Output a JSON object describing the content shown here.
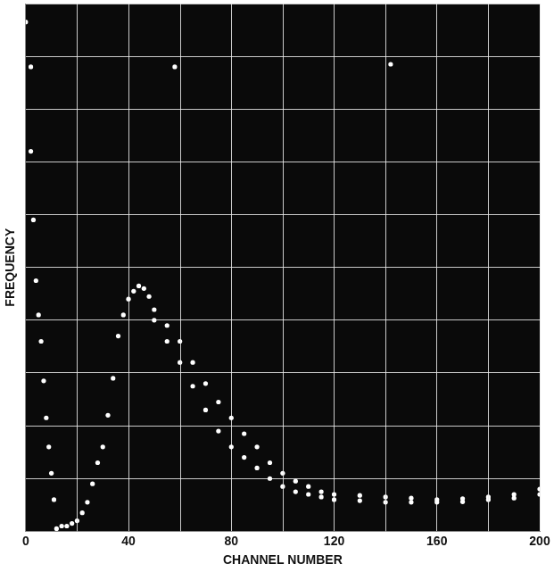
{
  "chart_data": {
    "type": "scatter",
    "x_label": "CHANNEL NUMBER",
    "y_label": "FREQUENCY",
    "xlim": [
      0,
      200
    ],
    "xticks": [
      0,
      40,
      80,
      120,
      160,
      200
    ],
    "ylim": [
      0,
      10
    ],
    "yticks": [
      0,
      1,
      2,
      3,
      4,
      5,
      6,
      7,
      8,
      9,
      10
    ],
    "tick_labels": "x",
    "grid": true,
    "marker": "circle",
    "series": [
      {
        "color": "#ffffff",
        "x": [
          0,
          2,
          3,
          4,
          5,
          6,
          7,
          8,
          9,
          10,
          11,
          2,
          58,
          142
        ],
        "values": [
          9.65,
          7.2,
          5.9,
          4.75,
          4.1,
          3.6,
          2.85,
          2.15,
          1.6,
          1.1,
          0.6,
          8.8,
          8.8,
          8.85
        ]
      },
      {
        "color": "#ffffff",
        "x": [
          12,
          14,
          16,
          18,
          20,
          22,
          24,
          26,
          28,
          30,
          32,
          34,
          36,
          38,
          40,
          42,
          44,
          46,
          48,
          50,
          55,
          60,
          65,
          70,
          75,
          80,
          85,
          90,
          95,
          100,
          105,
          110,
          115,
          120,
          130,
          140,
          150,
          160,
          170,
          180,
          190,
          200
        ],
        "values": [
          0.05,
          0.1,
          0.1,
          0.15,
          0.2,
          0.35,
          0.55,
          0.9,
          1.3,
          1.6,
          2.2,
          2.9,
          3.7,
          4.1,
          4.4,
          4.55,
          4.65,
          4.6,
          4.45,
          4.2,
          3.9,
          3.6,
          3.2,
          2.8,
          2.45,
          2.15,
          1.85,
          1.6,
          1.3,
          1.1,
          0.95,
          0.85,
          0.75,
          0.7,
          0.68,
          0.65,
          0.63,
          0.6,
          0.62,
          0.65,
          0.7,
          0.8
        ]
      },
      {
        "color": "#ffffff",
        "x": [
          50,
          55,
          60,
          65,
          70,
          75,
          80,
          85,
          90,
          95,
          100,
          105,
          110,
          115,
          120,
          130,
          140,
          150,
          160,
          170,
          180,
          190,
          200
        ],
        "values": [
          4.0,
          3.6,
          3.2,
          2.75,
          2.3,
          1.9,
          1.6,
          1.4,
          1.2,
          1.0,
          0.85,
          0.75,
          0.7,
          0.65,
          0.6,
          0.58,
          0.55,
          0.55,
          0.55,
          0.56,
          0.6,
          0.63,
          0.7
        ]
      }
    ]
  }
}
